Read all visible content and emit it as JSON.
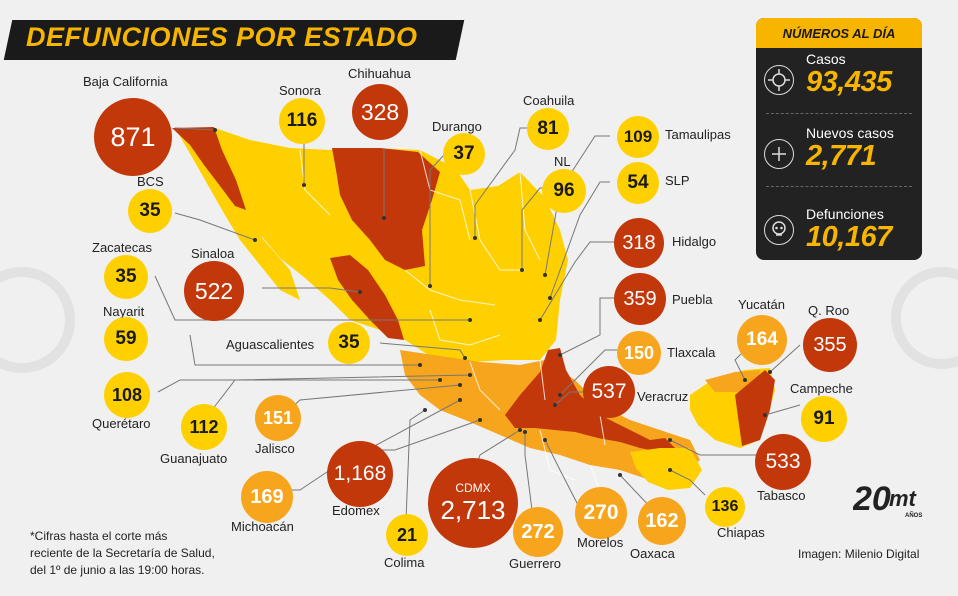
{
  "title": "DEFUNCIONES POR ESTADO",
  "panel": {
    "heading": "NÚMEROS AL DÍA",
    "stats": [
      {
        "label": "Casos",
        "value": "93,435",
        "icon": "virus-icon"
      },
      {
        "label": "Nuevos casos",
        "value": "2,771",
        "icon": "plus-icon"
      },
      {
        "label": "Defunciones",
        "value": "10,167",
        "icon": "skull-icon"
      }
    ]
  },
  "states": {
    "baja_california": {
      "name": "Baja California",
      "value": "871"
    },
    "sonora": {
      "name": "Sonora",
      "value": "116"
    },
    "chihuahua": {
      "name": "Chihuahua",
      "value": "328"
    },
    "durango": {
      "name": "Durango",
      "value": "37"
    },
    "coahuila": {
      "name": "Coahuila",
      "value": "81"
    },
    "nl": {
      "name": "NL",
      "value": "96"
    },
    "tamaulipas": {
      "name": "Tamaulipas",
      "value": "109"
    },
    "slp": {
      "name": "SLP",
      "value": "54"
    },
    "hidalgo": {
      "name": "Hidalgo",
      "value": "318"
    },
    "puebla": {
      "name": "Puebla",
      "value": "359"
    },
    "tlaxcala": {
      "name": "Tlaxcala",
      "value": "150"
    },
    "veracruz": {
      "name": "Veracruz",
      "value": "537"
    },
    "yucatan": {
      "name": "Yucatán",
      "value": "164"
    },
    "q_roo": {
      "name": "Q. Roo",
      "value": "355"
    },
    "campeche": {
      "name": "Campeche",
      "value": "91"
    },
    "tabasco": {
      "name": "Tabasco",
      "value": "533"
    },
    "chiapas": {
      "name": "Chiapas",
      "value": "136"
    },
    "oaxaca": {
      "name": "Oaxaca",
      "value": "162"
    },
    "morelos": {
      "name": "Morelos",
      "value": "270"
    },
    "guerrero": {
      "name": "Guerrero",
      "value": "272"
    },
    "cdmx": {
      "name": "CDMX",
      "value": "2,713"
    },
    "colima": {
      "name": "Colima",
      "value": "21"
    },
    "edomex": {
      "name": "Edomex",
      "value": "1,168"
    },
    "michoacan": {
      "name": "Michoacán",
      "value": "169"
    },
    "jalisco": {
      "name": "Jalisco",
      "value": "151"
    },
    "guanajuato": {
      "name": "Guanajuato",
      "value": "112"
    },
    "queretaro": {
      "name": "Querétaro",
      "value": "108"
    },
    "nayarit": {
      "name": "Nayarit",
      "value": "59"
    },
    "zacatecas": {
      "name": "Zacatecas",
      "value": "35"
    },
    "bcs": {
      "name": "BCS",
      "value": "35"
    },
    "sinaloa": {
      "name": "Sinaloa",
      "value": "522"
    },
    "aguascalientes": {
      "name": "Aguascalientes",
      "value": "35"
    }
  },
  "note": [
    "*Cifras hasta el corte más",
    "reciente de la Secretaría de Salud,",
    "del 1º de junio a las 19:00 horas."
  ],
  "credit": "Imagen: Milenio Digital",
  "logo": {
    "number": "20",
    "letters": "mt",
    "sub": "AÑOS"
  },
  "colors": {
    "red": "#c2380b",
    "yellow": "#ffd000",
    "orange": "#f7a51d",
    "dark": "#1a1a1a",
    "accent": "#f7b500"
  }
}
